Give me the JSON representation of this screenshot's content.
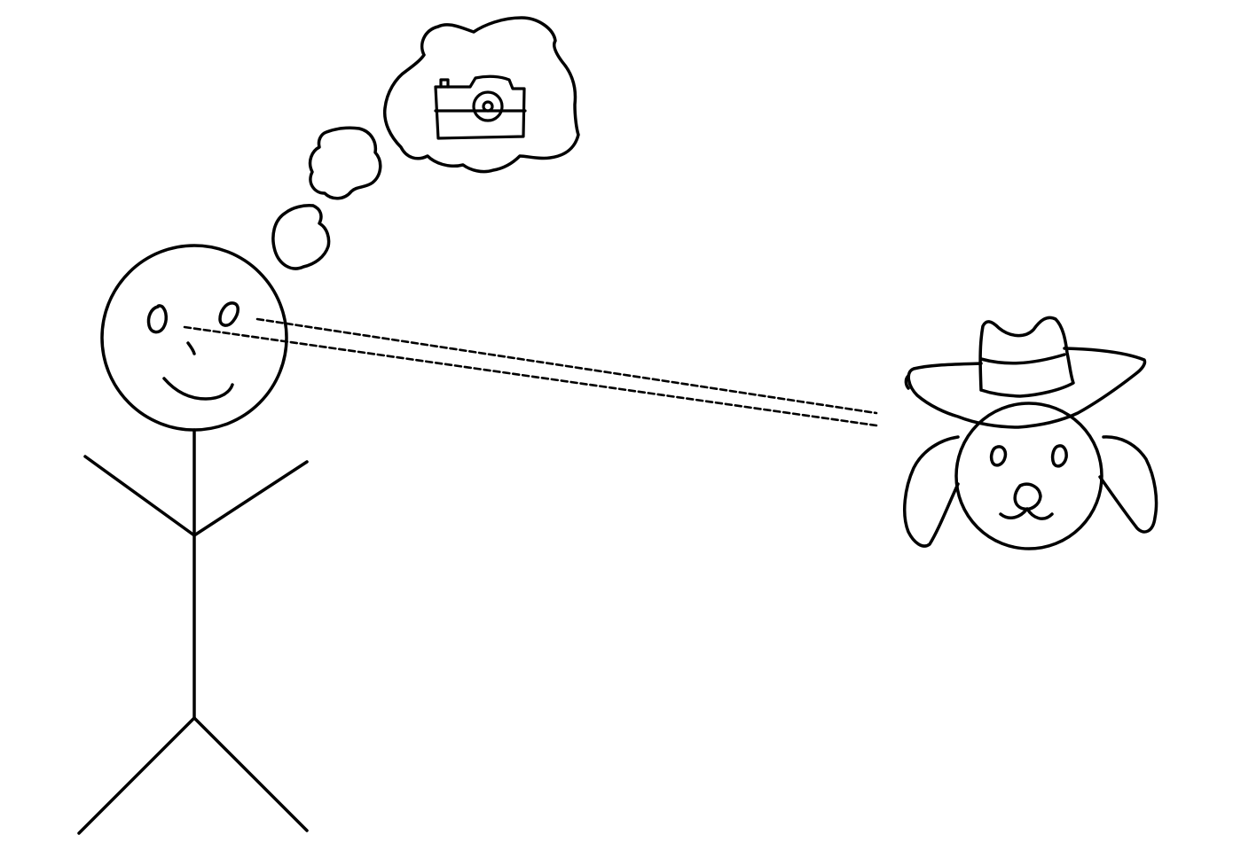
{
  "drawing": {
    "background_color": "#ffffff",
    "ink_color": "#000000",
    "figures": {
      "person": "stick-figure",
      "thought_content": "camera-icon",
      "subject": "dog-with-cowboy-hat"
    },
    "gaze_line_style": "dashed"
  }
}
